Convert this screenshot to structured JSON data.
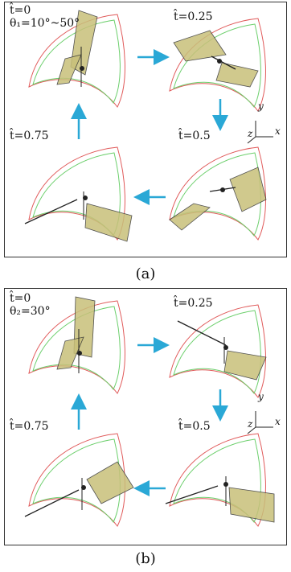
{
  "panel_a": {
    "caption": "(a)",
    "frames": [
      {
        "time": "t̂=0",
        "angle": "θ₁=10°~50°"
      },
      {
        "time": "t̂=0.25"
      },
      {
        "time": "t̂=0.5"
      },
      {
        "time": "t̂=0.75"
      }
    ]
  },
  "panel_b": {
    "caption": "(b)",
    "frames": [
      {
        "time": "t̂=0",
        "angle": "θ₂=30°"
      },
      {
        "time": "t̂=0.25"
      },
      {
        "time": "t̂=0.5"
      },
      {
        "time": "t̂=0.75"
      }
    ]
  },
  "axes": {
    "x": "x",
    "y": "y",
    "z": "z"
  },
  "colors": {
    "arrow": "#2aa8d6",
    "wing": "#c8c07a",
    "trajectory_red": "#e05a5a",
    "trajectory_green": "#6ccf6c",
    "border": "#333333"
  }
}
